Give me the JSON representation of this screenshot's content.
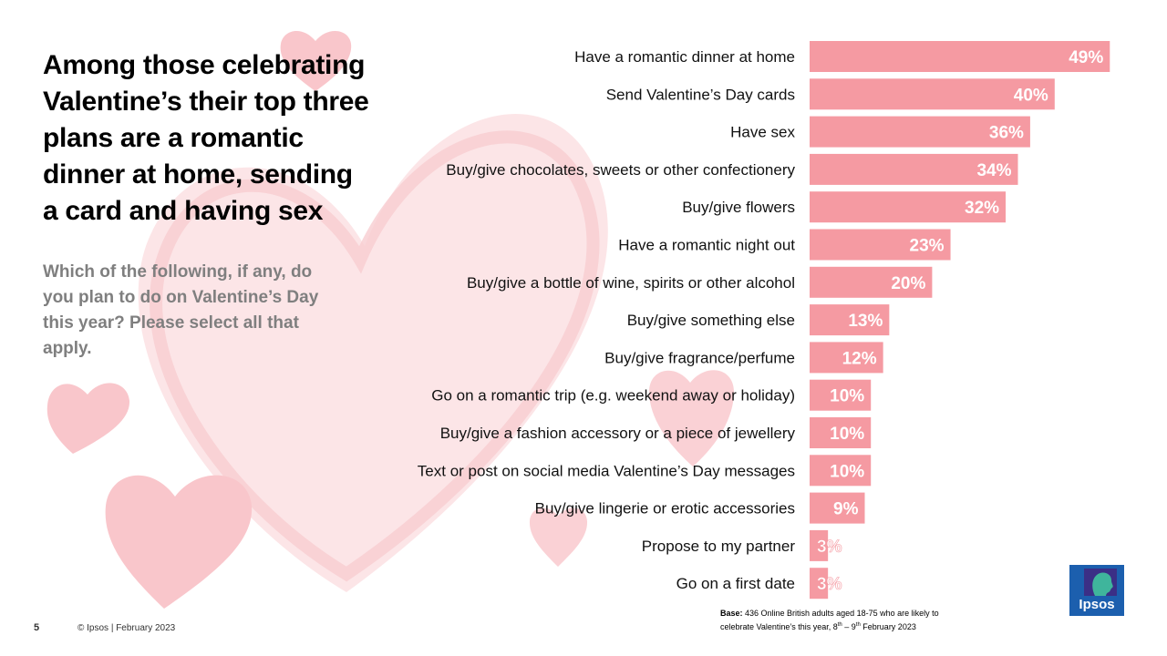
{
  "headline": "Among those celebrating Valentine’s their top three plans are a romantic dinner at home, sending a card and having sex",
  "question": "Which of the following,  if any, do you plan to do on Valentine’s Day this year? Please select all that apply.",
  "colors": {
    "bar": "#f59aa2",
    "heart": "#f8c8cd",
    "logo": "#1c5fae"
  },
  "chart_data": {
    "type": "bar",
    "orientation": "horizontal",
    "categories": [
      "Have a romantic dinner at home",
      "Send Valentine’s Day cards",
      "Have sex",
      "Buy/give chocolates, sweets or other confectionery",
      "Buy/give flowers",
      "Have a romantic night out",
      "Buy/give a bottle of wine, spirits or other alcohol",
      "Buy/give something else",
      "Buy/give fragrance/perfume",
      "Go on a romantic trip (e.g. weekend away or holiday)",
      "Buy/give a fashion accessory or a piece of jewellery",
      "Text or post on social media Valentine’s Day messages",
      "Buy/give lingerie or erotic accessories",
      "Propose to my partner",
      "Go on a first date"
    ],
    "values": [
      49,
      40,
      36,
      34,
      32,
      23,
      20,
      13,
      12,
      10,
      10,
      10,
      9,
      3,
      3
    ],
    "value_labels": [
      "49%",
      "40%",
      "36%",
      "34%",
      "32%",
      "23%",
      "20%",
      "13%",
      "12%",
      "10%",
      "10%",
      "10%",
      "9%",
      "3%",
      "3%"
    ],
    "value_unit": "%",
    "grid": false,
    "legend": "none"
  },
  "base_note": {
    "bold": "Base:",
    "line1": " 436 Online British adults aged 18-75 who are likely to",
    "line2a": "celebrate Valentine’s this year, 8",
    "sup1": "th",
    "dash": " – 9",
    "sup2": "th",
    "line2b": " February 2023"
  },
  "footer": {
    "page_number": "5",
    "copyright": "© Ipsos | February 2023"
  },
  "logo": {
    "text": "Ipsos"
  }
}
